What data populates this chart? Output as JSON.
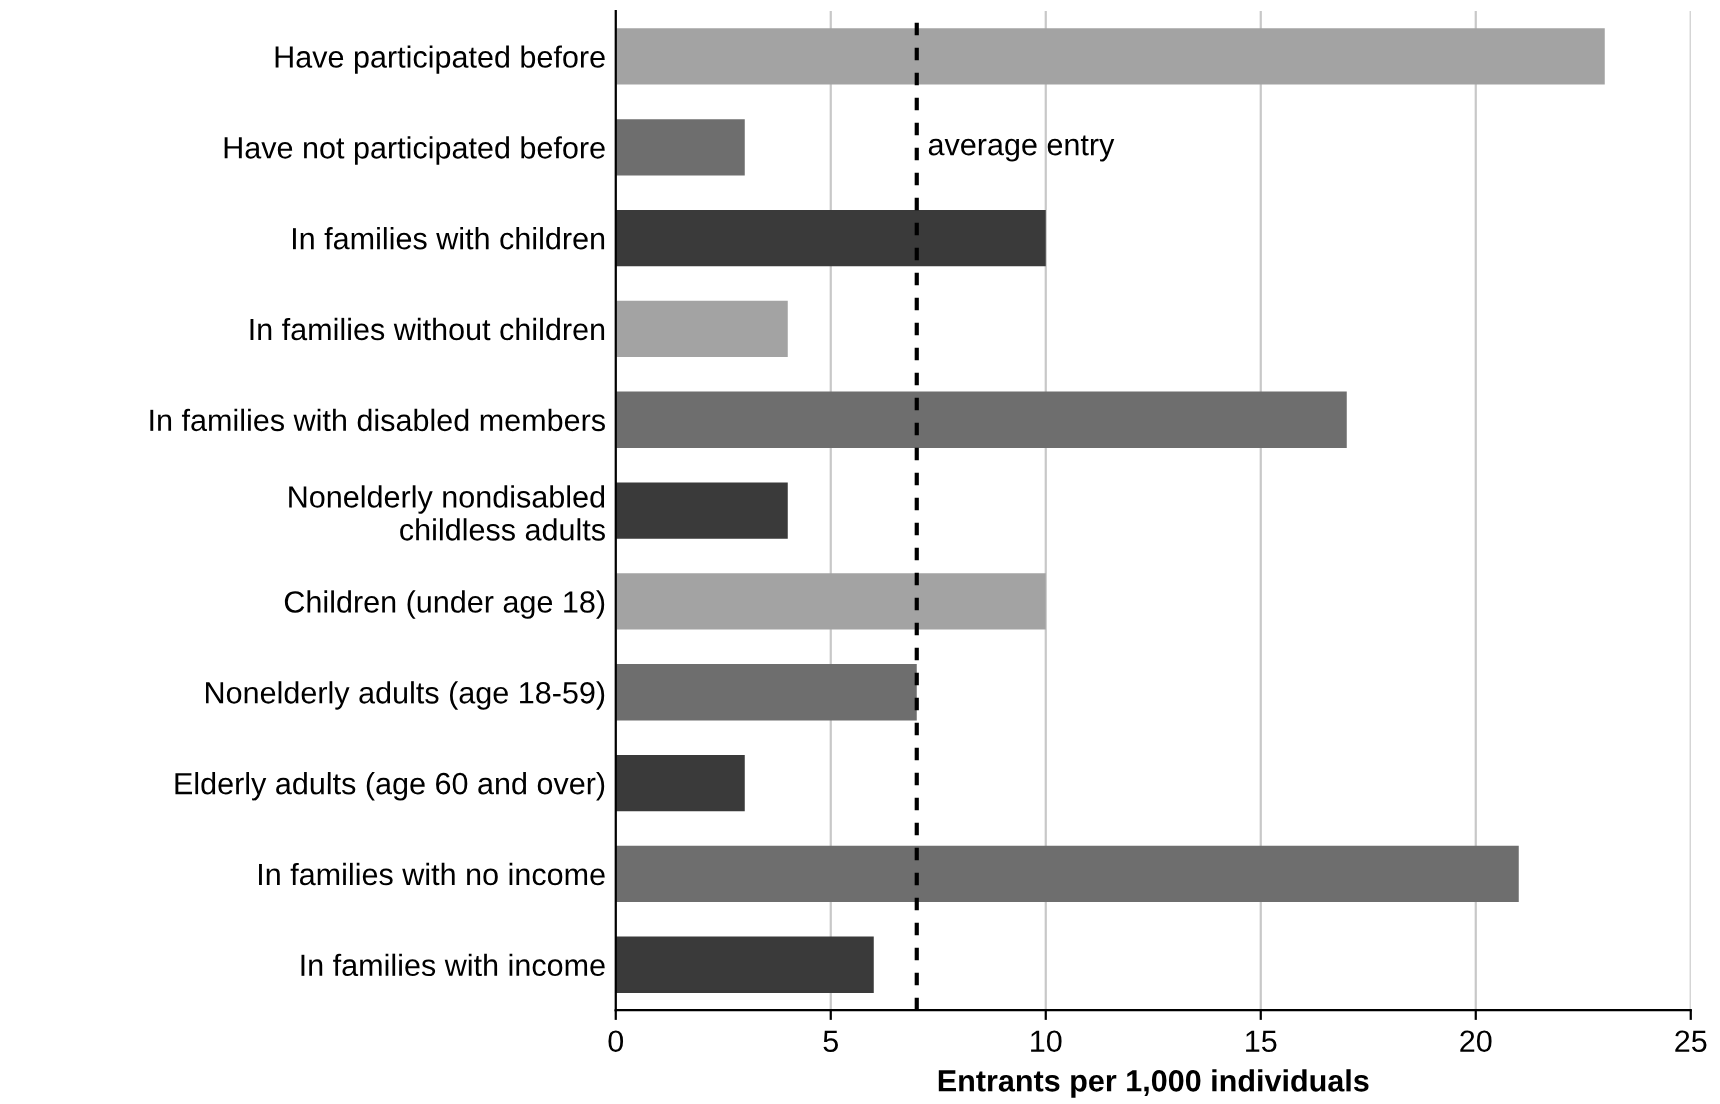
{
  "chart_data": {
    "type": "bar",
    "orientation": "horizontal",
    "categories": [
      "Have participated before",
      "Have not participated before",
      "In families with children",
      "In families without children",
      "In families with disabled members",
      "Nonelderly nondisabled\nchildless adults",
      "Children (under age 18)",
      "Nonelderly adults (age 18-59)",
      "Elderly adults (age 60 and over)",
      "In families with no income",
      "In families with income"
    ],
    "values": [
      23,
      3,
      10,
      4,
      17,
      4,
      10,
      7,
      3,
      21,
      6
    ],
    "colors": [
      "#a3a3a3",
      "#6e6e6e",
      "#3a3a3a",
      "#a3a3a3",
      "#6e6e6e",
      "#3a3a3a",
      "#a3a3a3",
      "#6e6e6e",
      "#3a3a3a",
      "#6e6e6e",
      "#3a3a3a"
    ],
    "xlabel": "Entrants per 1,000 individuals",
    "xlim": [
      0,
      25
    ],
    "xticks": [
      0,
      5,
      10,
      15,
      20,
      25
    ],
    "grid": "x",
    "ref_lines": [
      {
        "axis": "x",
        "value": 7,
        "label": "average entry",
        "color": "#000000",
        "line_style": "dashed"
      }
    ]
  }
}
